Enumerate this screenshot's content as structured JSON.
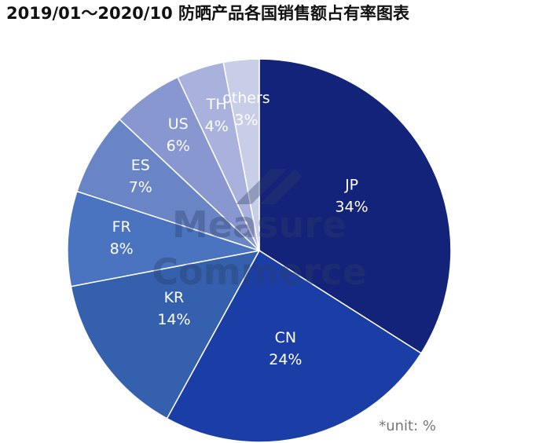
{
  "chart_data": {
    "type": "pie",
    "title": "2019/01～2020/10 防晒产品各国销售额占有率图表",
    "categories": [
      "JP",
      "CN",
      "KR",
      "FR",
      "ES",
      "US",
      "TH",
      "others"
    ],
    "values": [
      34,
      24,
      14,
      8,
      7,
      6,
      4,
      3
    ],
    "value_labels": [
      "34%",
      "24%",
      "14%",
      "8%",
      "7%",
      "6%",
      "4%",
      "3%"
    ],
    "colors": [
      "#13237a",
      "#1b3ea6",
      "#3460ad",
      "#4a74c0",
      "#6985c6",
      "#8897cf",
      "#a9b2dc",
      "#c8cde8"
    ],
    "watermark": [
      "Measure",
      "Commerce"
    ],
    "note": "*unit: %"
  }
}
